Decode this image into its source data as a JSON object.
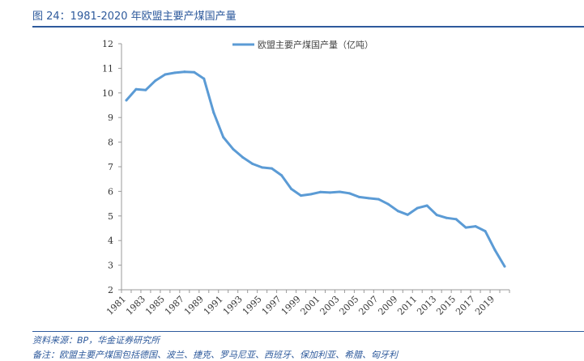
{
  "header": {
    "title": "图 24：1981-2020 年欧盟主要产煤国产量"
  },
  "footer": {
    "source": "资料来源：BP，华金证券研究所",
    "note": "备注：欧盟主要产煤国包括德国、波兰、捷克、罗马尼亚、西班牙、保加利亚、希腊、匈牙利"
  },
  "colors": {
    "line": "#5b9bd5",
    "accent": "#2e5a9c"
  },
  "chart_data": {
    "type": "line",
    "ylim": [
      2,
      12
    ],
    "yticks": [
      "2",
      "3",
      "4",
      "5",
      "6",
      "7",
      "8",
      "9",
      "10",
      "11",
      "12"
    ],
    "x_tick_labels": [
      "1981",
      "1983",
      "1985",
      "1987",
      "1989",
      "1991",
      "1993",
      "1995",
      "1997",
      "1999",
      "2001",
      "2003",
      "2005",
      "2007",
      "2009",
      "2011",
      "2013",
      "2015",
      "2017",
      "2019"
    ],
    "legend_position": "top-center",
    "grid": false,
    "series": [
      {
        "name": "欧盟主要产煤国产量（亿吨）",
        "x": [
          1981,
          1982,
          1983,
          1984,
          1985,
          1986,
          1987,
          1988,
          1989,
          1990,
          1991,
          1992,
          1993,
          1994,
          1995,
          1996,
          1997,
          1998,
          1999,
          2000,
          2001,
          2002,
          2003,
          2004,
          2005,
          2006,
          2007,
          2008,
          2009,
          2010,
          2011,
          2012,
          2013,
          2014,
          2015,
          2016,
          2017,
          2018,
          2019,
          2020
        ],
        "values": [
          9.7,
          10.15,
          10.12,
          10.5,
          10.75,
          10.82,
          10.86,
          10.84,
          10.58,
          9.2,
          8.2,
          7.72,
          7.38,
          7.12,
          6.97,
          6.93,
          6.65,
          6.1,
          5.83,
          5.88,
          5.97,
          5.95,
          5.98,
          5.92,
          5.77,
          5.72,
          5.68,
          5.48,
          5.2,
          5.05,
          5.32,
          5.42,
          5.04,
          4.92,
          4.87,
          4.53,
          4.58,
          4.38,
          3.62,
          2.95
        ]
      }
    ]
  }
}
